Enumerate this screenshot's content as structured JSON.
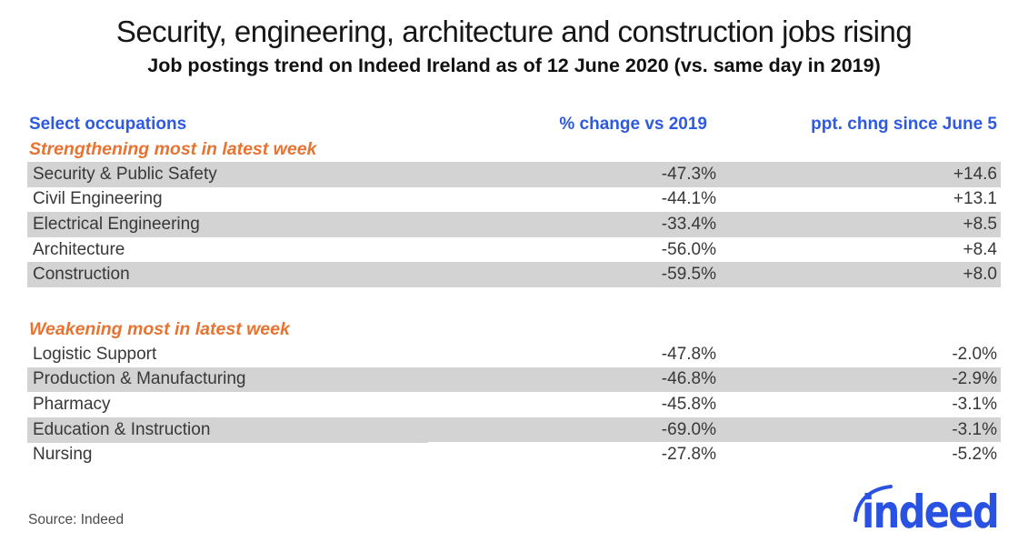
{
  "header": {
    "title": "Security, engineering, architecture and construction jobs rising",
    "subtitle": "Job postings trend on Indeed Ireland as of 12 June 2020 (vs. same day in 2019)"
  },
  "table": {
    "columns": [
      "Select occupations",
      "% change vs 2019",
      "ppt. chng since June 5"
    ],
    "sections": [
      {
        "label": "Strengthening most in latest week",
        "stripe": "even",
        "rows": [
          {
            "occupation": "Security & Public Safety",
            "change": "-47.3%",
            "ppt": "+14.6"
          },
          {
            "occupation": "Civil Engineering",
            "change": "-44.1%",
            "ppt": "+13.1"
          },
          {
            "occupation": "Electrical Engineering",
            "change": "-33.4%",
            "ppt": "+8.5"
          },
          {
            "occupation": "Architecture",
            "change": "-56.0%",
            "ppt": "+8.4"
          },
          {
            "occupation": "Construction",
            "change": "-59.5%",
            "ppt": "+8.0"
          }
        ]
      },
      {
        "label": "Weakening most in latest week",
        "stripe": "odd",
        "rows": [
          {
            "occupation": "Logistic Support",
            "change": "-47.8%",
            "ppt": "-2.0%"
          },
          {
            "occupation": "Production & Manufacturing",
            "change": "-46.8%",
            "ppt": "-2.9%"
          },
          {
            "occupation": "Pharmacy",
            "change": "-45.8%",
            "ppt": "-3.1%"
          },
          {
            "occupation": "Education & Instruction",
            "change": "-69.0%",
            "ppt": "-3.1%"
          },
          {
            "occupation": "Nursing",
            "change": "-27.8%",
            "ppt": "-5.2%"
          }
        ]
      }
    ]
  },
  "footer": {
    "source": "Source: Indeed",
    "logo_text": "indeed"
  },
  "colors": {
    "accent_blue": "#2d5ae1",
    "accent_orange": "#e87330",
    "row_shade": "#d3d3d3",
    "logo_blue": "#2a52e2",
    "title_black": "#161616",
    "body_text": "#383838"
  },
  "chart_data": {
    "type": "table",
    "title": "Security, engineering, architecture and construction jobs rising",
    "subtitle": "Job postings trend on Indeed Ireland as of 12 June 2020 (vs. same day in 2019)",
    "columns": [
      "Select occupations",
      "% change vs 2019",
      "ppt. chng since June 5"
    ],
    "groups": [
      {
        "label": "Strengthening most in latest week",
        "rows": [
          [
            "Security & Public Safety",
            -47.3,
            14.6
          ],
          [
            "Civil Engineering",
            -44.1,
            13.1
          ],
          [
            "Electrical Engineering",
            -33.4,
            8.5
          ],
          [
            "Architecture",
            -56.0,
            8.4
          ],
          [
            "Construction",
            -59.5,
            8.0
          ]
        ]
      },
      {
        "label": "Weakening most in latest week",
        "rows": [
          [
            "Logistic Support",
            -47.8,
            -2.0
          ],
          [
            "Production & Manufacturing",
            -46.8,
            -2.9
          ],
          [
            "Pharmacy",
            -45.8,
            -3.1
          ],
          [
            "Education & Instruction",
            -69.0,
            -3.1
          ],
          [
            "Nursing",
            -27.8,
            -5.2
          ]
        ]
      }
    ],
    "source": "Source: Indeed",
    "legend_position": "none",
    "grid": false
  }
}
